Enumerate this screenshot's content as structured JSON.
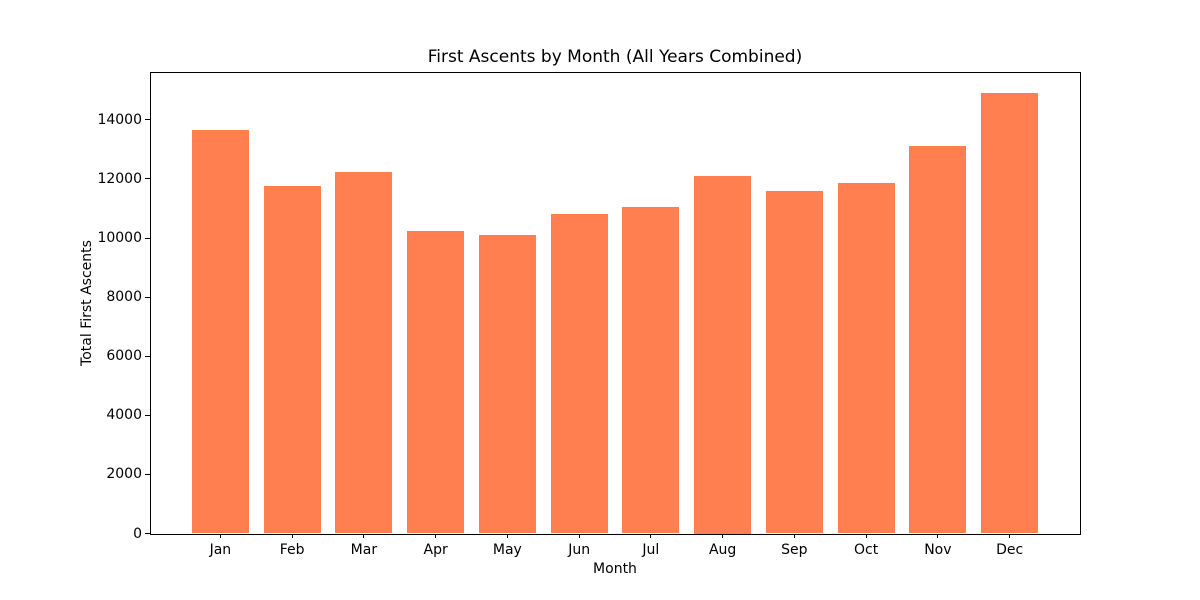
{
  "figure": {
    "background": "#ffffff",
    "axis_color": "#000000"
  },
  "chart_data": {
    "type": "bar",
    "title": "First Ascents by Month (All Years Combined)",
    "xlabel": "Month",
    "ylabel": "Total First Ascents",
    "categories": [
      "Jan",
      "Feb",
      "Mar",
      "Apr",
      "May",
      "Jun",
      "Jul",
      "Aug",
      "Sep",
      "Oct",
      "Nov",
      "Dec"
    ],
    "values": [
      13650,
      11750,
      12250,
      10250,
      10100,
      10800,
      11050,
      12100,
      11600,
      11850,
      13100,
      14900
    ],
    "yticks": [
      0,
      2000,
      4000,
      6000,
      8000,
      10000,
      12000,
      14000
    ],
    "ylim": [
      0,
      15620
    ],
    "bar_color": "#ff7f50",
    "grid": false,
    "legend_position": "none"
  }
}
